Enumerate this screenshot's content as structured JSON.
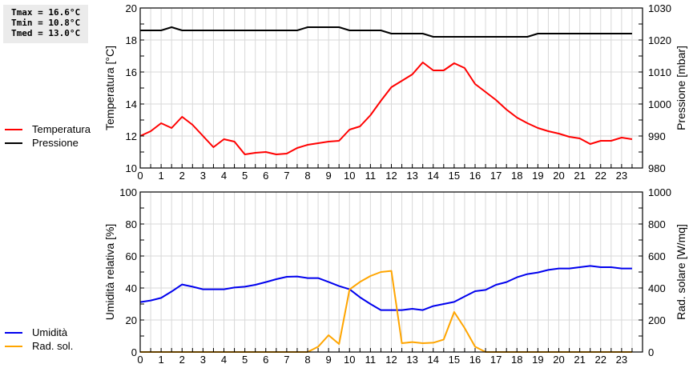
{
  "stats": {
    "tmax": "Tmax = 16.6°C",
    "tmin": "Tmin = 10.8°C",
    "tmed": "Tmed = 13.0°C"
  },
  "legends": {
    "top": [
      {
        "label": "Temperatura",
        "color": "#ff0000"
      },
      {
        "label": "Pressione",
        "color": "#000000"
      }
    ],
    "bottom": [
      {
        "label": "Umidità",
        "color": "#0000ee"
      },
      {
        "label": "Rad. sol.",
        "color": "#ffa500"
      }
    ]
  },
  "colors": {
    "grid": "#d8d8d8",
    "axis": "#000000",
    "temperature": "#ff0000",
    "pressure": "#000000",
    "humidity": "#0000ee",
    "radiation": "#ffa500"
  },
  "chart_data": [
    {
      "type": "line",
      "title": "",
      "xlabel": "",
      "ylabel": "Temperatura [°C]",
      "y2label": "Pressione [mbar]",
      "xlim": [
        0,
        24
      ],
      "ylim": [
        10,
        20
      ],
      "y2lim": [
        980,
        1030
      ],
      "x_ticks": [
        0,
        1,
        2,
        3,
        4,
        5,
        6,
        7,
        8,
        9,
        10,
        11,
        12,
        13,
        14,
        15,
        16,
        17,
        18,
        19,
        20,
        21,
        22,
        23
      ],
      "y_ticks": [
        10,
        12,
        14,
        16,
        18,
        20
      ],
      "y2_ticks": [
        980,
        990,
        1000,
        1010,
        1020,
        1030
      ],
      "grid": true,
      "legend_position": "left",
      "x": [
        0,
        0.5,
        1,
        1.5,
        2,
        2.5,
        3,
        3.5,
        4,
        4.5,
        5,
        5.5,
        6,
        6.5,
        7,
        7.5,
        8,
        8.5,
        9,
        9.5,
        10,
        10.5,
        11,
        11.5,
        12,
        12.5,
        13,
        13.5,
        14,
        14.5,
        15,
        15.5,
        16,
        16.5,
        17,
        17.5,
        18,
        18.5,
        19,
        19.5,
        20,
        20.5,
        21,
        21.5,
        22,
        22.5,
        23,
        23.5
      ],
      "series": [
        {
          "name": "Temperatura",
          "axis": "left",
          "values": [
            12.0,
            12.3,
            12.8,
            12.5,
            13.2,
            12.7,
            12.0,
            11.3,
            11.8,
            11.65,
            10.85,
            10.95,
            11.0,
            10.85,
            10.9,
            11.25,
            11.45,
            11.55,
            11.65,
            11.7,
            12.4,
            12.6,
            13.3,
            14.2,
            15.05,
            15.45,
            15.85,
            16.6,
            16.1,
            16.1,
            16.55,
            16.25,
            15.25,
            14.75,
            14.25,
            13.65,
            13.15,
            12.8,
            12.5,
            12.3,
            12.15,
            11.95,
            11.85,
            11.5,
            11.7,
            11.7,
            11.9,
            11.8
          ]
        },
        {
          "name": "Pressione",
          "axis": "right",
          "values": [
            1023,
            1023,
            1023,
            1024,
            1023,
            1023,
            1023,
            1023,
            1023,
            1023,
            1023,
            1023,
            1023,
            1023,
            1023,
            1023,
            1024,
            1024,
            1024,
            1024,
            1023,
            1023,
            1023,
            1023,
            1022,
            1022,
            1022,
            1022,
            1021,
            1021,
            1021,
            1021,
            1021,
            1021,
            1021,
            1021,
            1021,
            1021,
            1022,
            1022,
            1022,
            1022,
            1022,
            1022,
            1022,
            1022,
            1022,
            1022
          ]
        }
      ]
    },
    {
      "type": "line",
      "title": "",
      "xlabel": "",
      "ylabel": "Umidità relativa [%]",
      "y2label": "Rad. solare [W/mq]",
      "xlim": [
        0,
        24
      ],
      "ylim": [
        0,
        100
      ],
      "y2lim": [
        0,
        1000
      ],
      "x_ticks": [
        0,
        1,
        2,
        3,
        4,
        5,
        6,
        7,
        8,
        9,
        10,
        11,
        12,
        13,
        14,
        15,
        16,
        17,
        18,
        19,
        20,
        21,
        22,
        23
      ],
      "y_ticks": [
        0,
        20,
        40,
        60,
        80,
        100
      ],
      "y2_ticks": [
        0,
        200,
        400,
        600,
        800,
        1000
      ],
      "grid": true,
      "legend_position": "left",
      "x": [
        0,
        0.5,
        1,
        1.5,
        2,
        2.5,
        3,
        3.5,
        4,
        4.5,
        5,
        5.5,
        6,
        6.5,
        7,
        7.5,
        8,
        8.5,
        9,
        9.5,
        10,
        10.5,
        11,
        11.5,
        12,
        12.5,
        13,
        13.5,
        14,
        14.5,
        15,
        15.5,
        16,
        16.5,
        17,
        17.5,
        18,
        18.5,
        19,
        19.5,
        20,
        20.5,
        21,
        21.5,
        22,
        22.5,
        23,
        23.5
      ],
      "series": [
        {
          "name": "Umidità",
          "axis": "left",
          "values": [
            31.2,
            32.2,
            33.8,
            37.8,
            42.2,
            40.8,
            39.2,
            39.2,
            39.2,
            40.3,
            40.8,
            42.0,
            43.7,
            45.5,
            47.0,
            47.2,
            46.2,
            46.2,
            43.8,
            41.2,
            39.2,
            34.2,
            30.0,
            26.2,
            26.2,
            26.2,
            27.0,
            26.2,
            28.7,
            30.0,
            31.3,
            34.7,
            38.0,
            38.8,
            42.0,
            43.7,
            46.7,
            48.7,
            49.7,
            51.3,
            52.2,
            52.2,
            53.0,
            53.8,
            53.0,
            53.0,
            52.2,
            52.2
          ]
        },
        {
          "name": "Rad. sol.",
          "axis": "right",
          "values": [
            0,
            0,
            0,
            0,
            0,
            0,
            0,
            0,
            0,
            0,
            0,
            0,
            0,
            0,
            0,
            0,
            0,
            33,
            105,
            50,
            391,
            438,
            475,
            500,
            507,
            55,
            62,
            55,
            58,
            78,
            250,
            150,
            33,
            0,
            0,
            0,
            0,
            0,
            0,
            0,
            0,
            0,
            0,
            0,
            0,
            0,
            0,
            0
          ]
        }
      ]
    }
  ]
}
